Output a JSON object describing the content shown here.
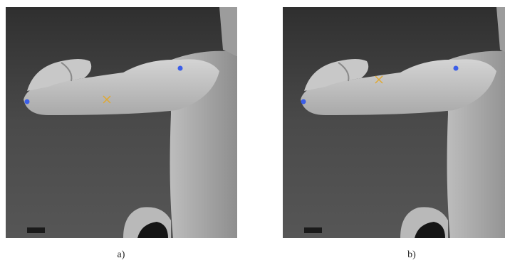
{
  "panels": [
    {
      "caption": "a)"
    },
    {
      "caption": "b)"
    }
  ]
}
